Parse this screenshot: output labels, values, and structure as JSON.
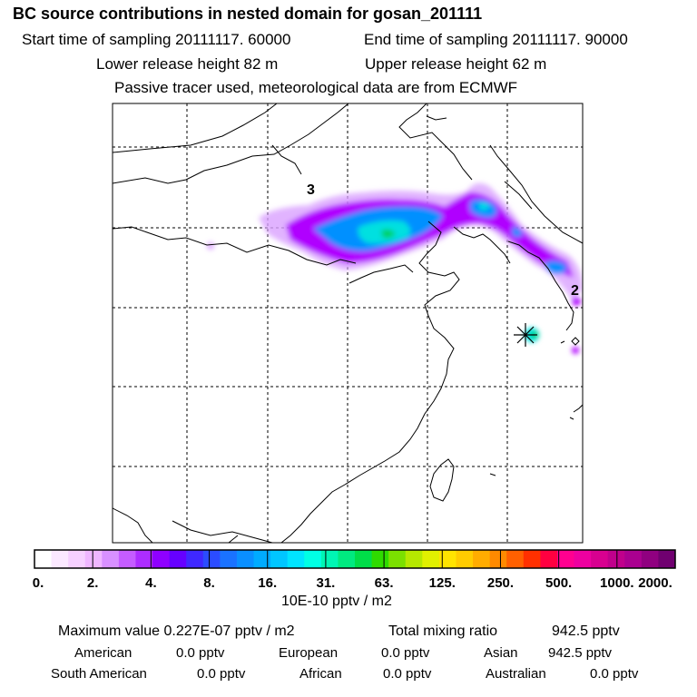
{
  "header": {
    "title": "BC  source contributions in nested domain for gosan_201111",
    "start_label": "Start time of sampling 20111117. 60000",
    "end_label": "End time of sampling 20111117. 90000",
    "lower_label": "Lower release height   82 m",
    "upper_label": "Upper release height   62 m",
    "info_line": "Passive tracer used, meteorological data are from ECMWF"
  },
  "map": {
    "labels": [
      "3",
      "2"
    ],
    "receptor_marker": "star-marker",
    "colors": {
      "plume_purple": "#b000ff",
      "plume_blue": "#0090ff",
      "plume_cyan": "#00e0e0",
      "plume_green": "#00d060"
    }
  },
  "legend": {
    "ticks": [
      "0.",
      "2.",
      "4.",
      "8.",
      "16.",
      "31.",
      "63.",
      "125.",
      "250.",
      "500.",
      "1000.",
      "2000."
    ],
    "units": "10E-10 pptv / m2",
    "colors": [
      "#ffffff",
      "#fbe8ff",
      "#f6d0ff",
      "#efb6ff",
      "#d890ff",
      "#c55cff",
      "#ad2dff",
      "#8f00ff",
      "#6600ff",
      "#3f28ff",
      "#2b4cff",
      "#1a72ff",
      "#0a8fff",
      "#00abff",
      "#00c6ff",
      "#00e4ff",
      "#00ffe4",
      "#00f6b4",
      "#00ea80",
      "#00dd48",
      "#2fdb00",
      "#7be000",
      "#b6e800",
      "#e1f000",
      "#ffe400",
      "#ffcc00",
      "#ffac00",
      "#ff8a00",
      "#ff6000",
      "#ff3000",
      "#ff0040",
      "#ff0090",
      "#ee00a0",
      "#d80090",
      "#c0008c",
      "#aa0090",
      "#900080",
      "#700070"
    ]
  },
  "stats": {
    "max_label": "Maximum value  0.227E-07 pptv / m2",
    "total_label": "Total mixing ratio",
    "total_value": "942.5 pptv",
    "regions": [
      {
        "name": "American",
        "value": "0.0 pptv"
      },
      {
        "name": "European",
        "value": "0.0 pptv"
      },
      {
        "name": "Asian",
        "value": "942.5 pptv"
      },
      {
        "name": "South American",
        "value": "0.0 pptv"
      },
      {
        "name": "African",
        "value": "0.0 pptv"
      },
      {
        "name": "Australian",
        "value": "0.0 pptv"
      }
    ]
  }
}
